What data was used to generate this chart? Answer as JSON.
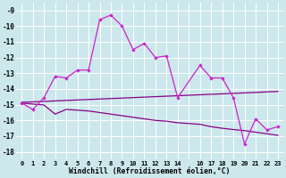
{
  "bg_color": "#cce8ec",
  "grid_color": "#aad4d8",
  "line_color_dark": "#880088",
  "line_color_bright": "#cc22cc",
  "xlabel": "Windchill (Refroidissement éolien,°C)",
  "x_all": [
    0,
    1,
    2,
    3,
    4,
    5,
    6,
    7,
    8,
    9,
    10,
    11,
    12,
    13,
    14,
    16,
    17,
    18,
    19,
    20,
    21,
    22,
    23
  ],
  "y_main": [
    -14.9,
    -15.3,
    -14.55,
    -13.2,
    -13.3,
    -12.8,
    -12.8,
    -9.6,
    -9.3,
    -10.0,
    -11.5,
    -11.1,
    -12.0,
    -11.9,
    -14.55,
    -12.5,
    -13.3,
    -13.3,
    -14.55,
    -17.5,
    -15.9,
    -16.6,
    -16.4
  ],
  "y_line2": [
    -14.85,
    -14.82,
    -14.79,
    -14.76,
    -14.73,
    -14.7,
    -14.67,
    -14.64,
    -14.61,
    -14.58,
    -14.55,
    -14.52,
    -14.49,
    -14.46,
    -14.43,
    -14.37,
    -14.34,
    -14.31,
    -14.28,
    -14.25,
    -14.22,
    -14.19,
    -14.16
  ],
  "y_line3": [
    -14.9,
    -14.96,
    -15.02,
    -15.6,
    -15.3,
    -15.35,
    -15.4,
    -15.5,
    -15.6,
    -15.7,
    -15.8,
    -15.9,
    -16.0,
    -16.05,
    -16.15,
    -16.25,
    -16.4,
    -16.5,
    -16.58,
    -16.65,
    -16.75,
    -16.85,
    -16.95
  ],
  "ylim": [
    -18.5,
    -8.5
  ],
  "xlim": [
    -0.5,
    23.5
  ],
  "yticks": [
    -18,
    -17,
    -16,
    -15,
    -14,
    -13,
    -12,
    -11,
    -10,
    -9
  ],
  "xtick_labels": [
    "0",
    "1",
    "2",
    "3",
    "4",
    "5",
    "6",
    "7",
    "8",
    "9",
    "10",
    "11",
    "12",
    "13",
    "14",
    "",
    "16",
    "17",
    "18",
    "19",
    "20",
    "21",
    "22",
    "23"
  ]
}
